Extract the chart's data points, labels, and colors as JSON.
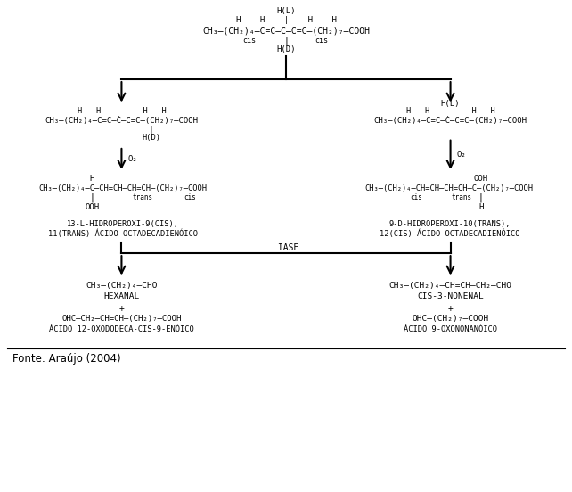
{
  "bg_color": "#ffffff",
  "text_color": "#000000",
  "figsize": [
    6.42,
    5.52
  ],
  "dpi": 100,
  "fonte": "Fonte: Araújo (2004)",
  "top_HL": "H(L)",
  "top_HH": "H    H    |    H    H",
  "top_chain": "CH₃–(CH₂)₄–C=C–C–C=C–(CH₂)₇–COOH",
  "top_cis_left": "cis",
  "top_cis_right": "cis",
  "top_HD": "H(D)",
  "left_HH": "H   H         H   H",
  "left_chain": "CH₃–(CH₂)₄–C=C–Ċ–C=C–(CH₂)₇–COOH",
  "left_HD": "H(D)",
  "left_O2": "O₂",
  "right_HL": "H(L)",
  "right_HH": "H   H         H   H",
  "right_chain": "CH₃–(CH₂)₄–C=C–Ċ–C=C–(CH₂)₇–COOH",
  "right_O2": "O₂",
  "left_H": "H",
  "left_hydro_chain": "CH₃–(CH₂)₄–C–CH=CH–CH=CH–(CH₂)₇–COOH",
  "left_trans": "trans",
  "left_cis": "cis",
  "left_OOH": "OOH",
  "left_hydro_name1": "13-L-HIDROPEROXI-9(CIS),",
  "left_hydro_name2": "11(TRANS) ÁCIDO OCTADECADIENÓICO",
  "right_OOH": "OOH",
  "right_hydro_chain": "CH₃–(CH₂)₄–CH=CH–CH=CH–C–(CH₂)₇–COOH",
  "right_cis": "cis",
  "right_trans": "trans",
  "right_H": "H",
  "right_hydro_name1": "9-D-HIDROPEROXI-10(TRANS),",
  "right_hydro_name2": "12(CIS) ÁCIDO OCTADECADIENÓICO",
  "liase": "LIASE",
  "left_prod1": "CH₃–(CH₂)₄–CHO",
  "left_prod1_name": "HEXANAL",
  "left_plus": "+",
  "left_prod2": "OHC–CH₂–CH=CH–(CH₂)₇–COOH",
  "left_prod2_name": "ÁCIDO 12-OXODODECA-CIS-9-ENÓICO",
  "right_prod1": "CH₃–(CH₂)₄–CH=CH–CH₂–CHO",
  "right_prod1_name": "CIS-3-NONENAL",
  "right_plus": "+",
  "right_prod2": "OHC–(CH₂)₇–COOH",
  "right_prod2_name": "ÁCIDO 9-OXONONANÓICO"
}
